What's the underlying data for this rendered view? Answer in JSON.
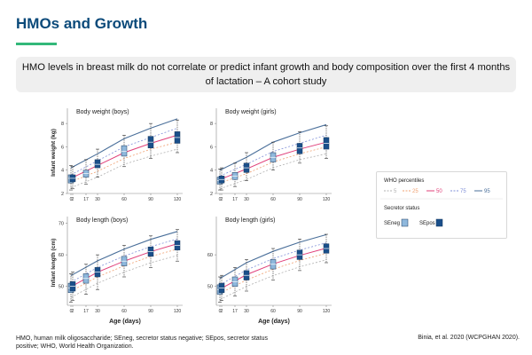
{
  "header": {
    "title": "HMOs and Growth",
    "banner_line1": "HMO levels in breast milk do not correlate or predict infant growth and body composition over the first 4 months",
    "banner_line2": "of lactation – A cohort study"
  },
  "colors": {
    "title": "#0b4a7a",
    "accent_rule": "#33b87a",
    "p5": "#b0b0b0",
    "p25": "#f0a070",
    "p50": "#e0407a",
    "p75": "#8090d8",
    "p95": "#4a6f9a",
    "seneg_box": "#8fb8dc",
    "sepos_box": "#1a4f8a"
  },
  "chart_data": [
    {
      "type": "box",
      "title": "Body weight (boys)",
      "ylabel": "Infant weight (kg)",
      "xlabel": "",
      "xticks": [
        0,
        2,
        17,
        30,
        60,
        90,
        120
      ],
      "yticks": [
        2,
        4,
        6,
        8
      ],
      "ylim": [
        2,
        9
      ],
      "xlim": [
        -4,
        126
      ],
      "who": {
        "x": [
          0,
          30,
          60,
          90,
          120
        ],
        "p5": [
          2.5,
          3.4,
          4.5,
          5.2,
          5.8
        ],
        "p25": [
          3.0,
          3.9,
          5.0,
          5.8,
          6.4
        ],
        "p50": [
          3.3,
          4.4,
          5.5,
          6.3,
          7.0
        ],
        "p75": [
          3.6,
          4.8,
          6.0,
          6.8,
          7.6
        ],
        "p95": [
          4.2,
          5.4,
          6.7,
          7.6,
          8.4
        ]
      },
      "boxes": [
        {
          "x": 0,
          "status": "SEneg",
          "min": 2.3,
          "q1": 2.9,
          "med": 3.3,
          "q3": 3.6,
          "max": 4.4
        },
        {
          "x": 2,
          "status": "SEpos",
          "min": 2.4,
          "q1": 3.0,
          "med": 3.3,
          "q3": 3.6,
          "max": 4.3
        },
        {
          "x": 17,
          "status": "SEneg",
          "min": 2.8,
          "q1": 3.4,
          "med": 3.7,
          "q3": 4.0,
          "max": 4.9
        },
        {
          "x": 30,
          "status": "SEpos",
          "min": 3.4,
          "q1": 4.2,
          "med": 4.5,
          "q3": 4.9,
          "max": 5.8
        },
        {
          "x": 60,
          "status": "SEneg",
          "min": 4.3,
          "q1": 5.2,
          "med": 5.6,
          "q3": 6.1,
          "max": 7.0
        },
        {
          "x": 90,
          "status": "SEpos",
          "min": 5.0,
          "q1": 5.9,
          "med": 6.4,
          "q3": 6.9,
          "max": 8.0
        },
        {
          "x": 120,
          "status": "SEpos",
          "min": 5.5,
          "q1": 6.3,
          "med": 6.8,
          "q3": 7.3,
          "max": 8.3
        }
      ]
    },
    {
      "type": "box",
      "title": "Body weight (girls)",
      "ylabel": "",
      "xlabel": "",
      "xticks": [
        0,
        2,
        17,
        30,
        60,
        90,
        120
      ],
      "yticks": [
        2,
        4,
        6,
        8
      ],
      "ylim": [
        2,
        9
      ],
      "xlim": [
        -4,
        126
      ],
      "who": {
        "x": [
          0,
          30,
          60,
          90,
          120
        ],
        "p5": [
          2.4,
          3.2,
          4.2,
          4.9,
          5.4
        ],
        "p25": [
          2.9,
          3.7,
          4.7,
          5.4,
          6.0
        ],
        "p50": [
          3.2,
          4.1,
          5.1,
          5.8,
          6.4
        ],
        "p75": [
          3.5,
          4.5,
          5.6,
          6.3,
          7.0
        ],
        "p95": [
          4.0,
          5.1,
          6.4,
          7.2,
          7.9
        ]
      },
      "boxes": [
        {
          "x": 0,
          "status": "SEneg",
          "min": 2.3,
          "q1": 2.8,
          "med": 3.1,
          "q3": 3.4,
          "max": 4.1
        },
        {
          "x": 2,
          "status": "SEpos",
          "min": 2.3,
          "q1": 2.9,
          "med": 3.2,
          "q3": 3.5,
          "max": 4.2
        },
        {
          "x": 17,
          "status": "SEneg",
          "min": 2.6,
          "q1": 3.2,
          "med": 3.5,
          "q3": 3.8,
          "max": 4.6
        },
        {
          "x": 30,
          "status": "SEpos",
          "min": 3.1,
          "q1": 3.8,
          "med": 4.2,
          "q3": 4.6,
          "max": 5.5
        },
        {
          "x": 60,
          "status": "SEneg",
          "min": 4.0,
          "q1": 4.7,
          "med": 5.1,
          "q3": 5.5,
          "max": 6.4
        },
        {
          "x": 90,
          "status": "SEpos",
          "min": 4.6,
          "q1": 5.4,
          "med": 5.9,
          "q3": 6.3,
          "max": 7.3
        },
        {
          "x": 120,
          "status": "SEpos",
          "min": 5.0,
          "q1": 5.8,
          "med": 6.3,
          "q3": 6.8,
          "max": 7.8
        }
      ]
    },
    {
      "type": "box",
      "title": "Body length (boys)",
      "ylabel": "Infant length (cm)",
      "xlabel": "Age (days)",
      "xticks": [
        0,
        2,
        17,
        30,
        60,
        90,
        120
      ],
      "yticks": [
        50,
        60,
        70
      ],
      "ylim": [
        44,
        71
      ],
      "xlim": [
        -4,
        126
      ],
      "who": {
        "x": [
          0,
          30,
          60,
          90,
          120
        ],
        "p5": [
          46.5,
          51.0,
          54.5,
          57.5,
          59.8
        ],
        "p25": [
          48.5,
          53.0,
          56.5,
          59.5,
          61.8
        ],
        "p50": [
          49.9,
          54.5,
          58.0,
          61.0,
          63.5
        ],
        "p75": [
          51.3,
          56.0,
          59.6,
          62.6,
          65.0
        ],
        "p95": [
          53.4,
          58.1,
          61.8,
          64.9,
          67.4
        ]
      },
      "boxes": [
        {
          "x": 0,
          "status": "SEneg",
          "min": 45.0,
          "q1": 48.0,
          "med": 49.5,
          "q3": 51.0,
          "max": 54.0
        },
        {
          "x": 2,
          "status": "SEpos",
          "min": 45.5,
          "q1": 48.5,
          "med": 50.0,
          "q3": 51.5,
          "max": 54.5
        },
        {
          "x": 17,
          "status": "SEneg",
          "min": 47.5,
          "q1": 51.0,
          "med": 52.5,
          "q3": 54.0,
          "max": 57.0
        },
        {
          "x": 30,
          "status": "SEpos",
          "min": 49.0,
          "q1": 53.0,
          "med": 54.5,
          "q3": 56.0,
          "max": 60.0
        },
        {
          "x": 60,
          "status": "SEneg",
          "min": 53.0,
          "q1": 56.5,
          "med": 58.0,
          "q3": 59.5,
          "max": 63.0
        },
        {
          "x": 90,
          "status": "SEpos",
          "min": 56.0,
          "q1": 59.5,
          "med": 61.0,
          "q3": 62.5,
          "max": 66.0
        },
        {
          "x": 120,
          "status": "SEpos",
          "min": 58.0,
          "q1": 61.5,
          "med": 63.0,
          "q3": 64.5,
          "max": 68.0
        }
      ]
    },
    {
      "type": "box",
      "title": "Body length (girls)",
      "ylabel": "",
      "xlabel": "Age (days)",
      "xticks": [
        0,
        2,
        17,
        30,
        60,
        90,
        120
      ],
      "yticks": [
        50,
        60
      ],
      "ylim": [
        44,
        71
      ],
      "xlim": [
        -4,
        126
      ],
      "who": {
        "x": [
          0,
          30,
          60,
          90,
          120
        ],
        "p5": [
          45.8,
          50.0,
          53.4,
          56.2,
          58.4
        ],
        "p25": [
          47.8,
          52.0,
          55.4,
          58.2,
          60.5
        ],
        "p50": [
          49.1,
          53.7,
          57.1,
          59.8,
          62.1
        ],
        "p75": [
          50.5,
          55.2,
          58.8,
          61.5,
          63.8
        ],
        "p95": [
          52.5,
          57.5,
          61.1,
          64.0,
          66.4
        ]
      },
      "boxes": [
        {
          "x": 0,
          "status": "SEneg",
          "min": 45.0,
          "q1": 47.5,
          "med": 49.0,
          "q3": 50.5,
          "max": 53.0
        },
        {
          "x": 2,
          "status": "SEpos",
          "min": 45.5,
          "q1": 48.0,
          "med": 49.5,
          "q3": 51.0,
          "max": 53.5
        },
        {
          "x": 17,
          "status": "SEneg",
          "min": 47.0,
          "q1": 50.0,
          "med": 51.5,
          "q3": 53.0,
          "max": 56.0
        },
        {
          "x": 30,
          "status": "SEpos",
          "min": 48.5,
          "q1": 52.0,
          "med": 53.5,
          "q3": 55.0,
          "max": 58.5
        },
        {
          "x": 60,
          "status": "SEneg",
          "min": 52.0,
          "q1": 55.5,
          "med": 57.0,
          "q3": 58.5,
          "max": 62.0
        },
        {
          "x": 90,
          "status": "SEpos",
          "min": 55.0,
          "q1": 58.5,
          "med": 60.0,
          "q3": 61.5,
          "max": 65.0
        },
        {
          "x": 120,
          "status": "SEpos",
          "min": 57.5,
          "q1": 60.5,
          "med": 62.0,
          "q3": 63.5,
          "max": 66.5
        }
      ]
    }
  ],
  "legend": {
    "who_title": "WHO percentiles",
    "percentiles": [
      {
        "label": "5",
        "color": "#b0b0b0"
      },
      {
        "label": "25",
        "color": "#f0a070"
      },
      {
        "label": "50",
        "color": "#e0407a"
      },
      {
        "label": "75",
        "color": "#8090d8"
      },
      {
        "label": "95",
        "color": "#4a6f9a"
      }
    ],
    "secretor_title": "Secretor status",
    "seneg_label": "SEneg",
    "sepos_label": "SEpos"
  },
  "footer": {
    "abbreviations": "HMO, human milk oligosaccharide; SEneg, secretor status negative; SEpos, secretor status positive; WHO, World Health Organization.",
    "citation": "Binia, et al. 2020 (WCPGHAN 2020)."
  }
}
